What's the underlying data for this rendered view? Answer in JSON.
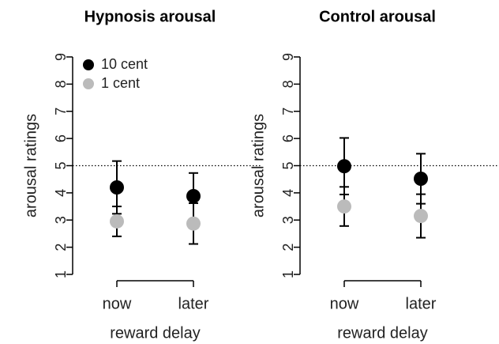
{
  "chart_data": [
    {
      "type": "scatter",
      "title": "Hypnosis arousal",
      "xlabel": "reward delay",
      "ylabel": "arousal ratings",
      "categories": [
        "now",
        "later"
      ],
      "ylim": [
        1,
        9
      ],
      "yticks": [
        1,
        2,
        3,
        4,
        5,
        6,
        7,
        8,
        9
      ],
      "hline": 5,
      "legend": true,
      "series": [
        {
          "name": "10 cent",
          "color": "#000000",
          "values": [
            4.2,
            3.88
          ],
          "errors": [
            0.97,
            0.85
          ]
        },
        {
          "name": "1 cent",
          "color": "#bbbbbb",
          "values": [
            2.95,
            2.87
          ],
          "errors": [
            0.55,
            0.75
          ]
        }
      ]
    },
    {
      "type": "scatter",
      "title": "Control arousal",
      "xlabel": "reward delay",
      "ylabel": "arousal ratings",
      "categories": [
        "now",
        "later"
      ],
      "ylim": [
        1,
        9
      ],
      "yticks": [
        1,
        2,
        3,
        4,
        5,
        6,
        7,
        8,
        9
      ],
      "hline": 5,
      "legend": false,
      "series": [
        {
          "color": "#000000",
          "values": [
            4.98,
            4.52
          ],
          "errors": [
            1.04,
            0.92
          ]
        },
        {
          "color": "#bbbbbb",
          "values": [
            3.5,
            3.15
          ],
          "errors": [
            0.72,
            0.8
          ]
        }
      ]
    }
  ]
}
